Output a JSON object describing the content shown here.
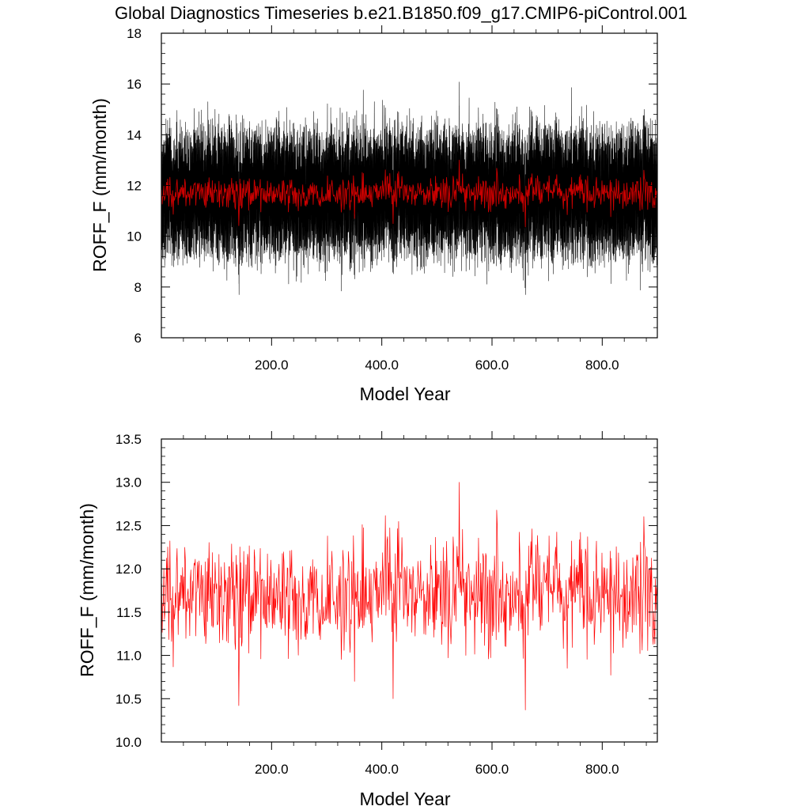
{
  "title": "Global Diagnostics Timeseries b.e21.B1850.f09_g17.CMIP6-piControl.001",
  "colors": {
    "monthly": "#000000",
    "annual": "#ff0000",
    "annual_top": "#cc0000"
  },
  "chart_data": [
    {
      "type": "line",
      "xlabel": "Model Year",
      "ylabel": "ROFF_F (mm/month)",
      "xlim": [
        0,
        900
      ],
      "ylim": [
        6,
        18
      ],
      "xticks": [
        200,
        400,
        600,
        800
      ],
      "xtick_labels": [
        "200.0",
        "400.0",
        "600.0",
        "800.0"
      ],
      "yticks": [
        6,
        8,
        10,
        12,
        14,
        16,
        18
      ],
      "ytick_labels": [
        "6",
        "8",
        "10",
        "12",
        "14",
        "16",
        "18"
      ],
      "grid": false,
      "legend": "none",
      "series": [
        {
          "role": "monthly",
          "mean": 11.7,
          "range": [
            7.7,
            16.9
          ],
          "points_per_year": 12
        },
        {
          "role": "annual",
          "mean": 11.7,
          "range": [
            10.35,
            13.0
          ],
          "points_per_year": 1
        }
      ]
    },
    {
      "type": "line",
      "xlabel": "Model Year",
      "ylabel": "ROFF_F (mm/month)",
      "xlim": [
        0,
        900
      ],
      "ylim": [
        10,
        13.5
      ],
      "xticks": [
        200,
        400,
        600,
        800
      ],
      "xtick_labels": [
        "200.0",
        "400.0",
        "600.0",
        "800.0"
      ],
      "yticks": [
        10,
        10.5,
        11,
        11.5,
        12,
        12.5,
        13,
        13.5
      ],
      "ytick_labels": [
        "10.0",
        "10.5",
        "11.0",
        "11.5",
        "12.0",
        "12.5",
        "13.0",
        "13.5"
      ],
      "grid": false,
      "legend": "none",
      "series": [
        {
          "role": "annual",
          "mean": 11.7,
          "range": [
            10.35,
            13.0
          ],
          "points_per_year": 1,
          "notable": [
            [
              140,
              10.42
            ],
            [
              420,
              10.5
            ],
            [
              540,
              13.0
            ],
            [
              660,
              10.37
            ]
          ]
        }
      ]
    }
  ]
}
